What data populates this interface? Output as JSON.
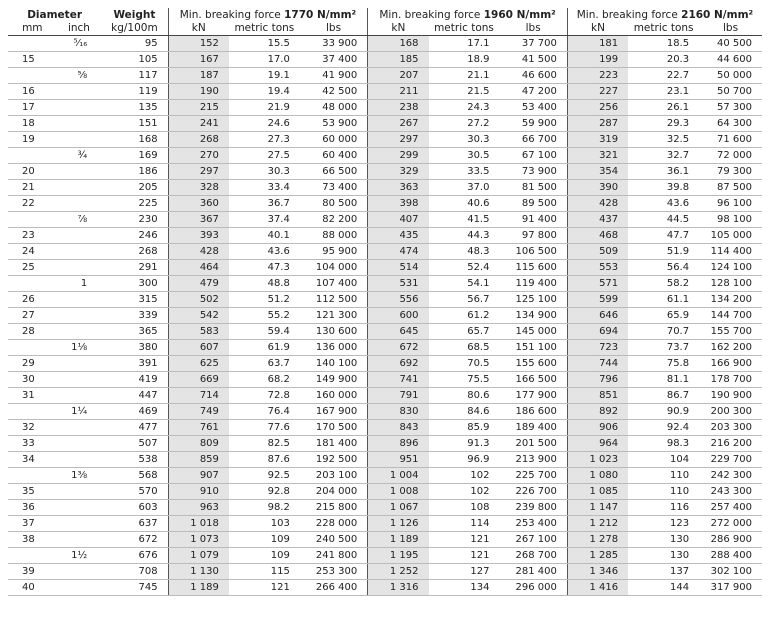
{
  "header": {
    "diameter": "Diameter",
    "weight": "Weight",
    "groups": [
      {
        "prefix": "Min. breaking force",
        "grade": "1770 N/mm²"
      },
      {
        "prefix": "Min. breaking force",
        "grade": "1960 N/mm²"
      },
      {
        "prefix": "Min. breaking force",
        "grade": "2160 N/mm²"
      }
    ],
    "units": [
      "mm",
      "inch",
      "kg/100m",
      "kN",
      "metric tons",
      "lbs",
      "kN",
      "metric tons",
      "lbs",
      "kN",
      "metric tons",
      "lbs"
    ]
  },
  "table": {
    "rows": [
      [
        null,
        "⁵⁄₁₆",
        "95",
        "152",
        "15.5",
        "33 900",
        "168",
        "17.1",
        "37 700",
        "181",
        "18.5",
        "40 500"
      ],
      [
        "15",
        null,
        "105",
        "167",
        "17.0",
        "37 400",
        "185",
        "18.9",
        "41 500",
        "199",
        "20.3",
        "44 600"
      ],
      [
        null,
        "⅝",
        "117",
        "187",
        "19.1",
        "41 900",
        "207",
        "21.1",
        "46 600",
        "223",
        "22.7",
        "50 000"
      ],
      [
        "16",
        null,
        "119",
        "190",
        "19.4",
        "42 500",
        "211",
        "21.5",
        "47 200",
        "227",
        "23.1",
        "50 700"
      ],
      [
        "17",
        null,
        "135",
        "215",
        "21.9",
        "48 000",
        "238",
        "24.3",
        "53 400",
        "256",
        "26.1",
        "57 300"
      ],
      [
        "18",
        null,
        "151",
        "241",
        "24.6",
        "53 900",
        "267",
        "27.2",
        "59 900",
        "287",
        "29.3",
        "64 300"
      ],
      [
        "19",
        null,
        "168",
        "268",
        "27.3",
        "60 000",
        "297",
        "30.3",
        "66 700",
        "319",
        "32.5",
        "71 600"
      ],
      [
        null,
        "¾",
        "169",
        "270",
        "27.5",
        "60 400",
        "299",
        "30.5",
        "67 100",
        "321",
        "32.7",
        "72 000"
      ],
      [
        "20",
        null,
        "186",
        "297",
        "30.3",
        "66 500",
        "329",
        "33.5",
        "73 900",
        "354",
        "36.1",
        "79 300"
      ],
      [
        "21",
        null,
        "205",
        "328",
        "33.4",
        "73 400",
        "363",
        "37.0",
        "81 500",
        "390",
        "39.8",
        "87 500"
      ],
      [
        "22",
        null,
        "225",
        "360",
        "36.7",
        "80 500",
        "398",
        "40.6",
        "89 500",
        "428",
        "43.6",
        "96 100"
      ],
      [
        null,
        "⅞",
        "230",
        "367",
        "37.4",
        "82 200",
        "407",
        "41.5",
        "91 400",
        "437",
        "44.5",
        "98 100"
      ],
      [
        "23",
        null,
        "246",
        "393",
        "40.1",
        "88 000",
        "435",
        "44.3",
        "97 800",
        "468",
        "47.7",
        "105 000"
      ],
      [
        "24",
        null,
        "268",
        "428",
        "43.6",
        "95 900",
        "474",
        "48.3",
        "106 500",
        "509",
        "51.9",
        "114 400"
      ],
      [
        "25",
        null,
        "291",
        "464",
        "47.3",
        "104 000",
        "514",
        "52.4",
        "115 600",
        "553",
        "56.4",
        "124 100"
      ],
      [
        null,
        "1",
        "300",
        "479",
        "48.8",
        "107 400",
        "531",
        "54.1",
        "119 400",
        "571",
        "58.2",
        "128 100"
      ],
      [
        "26",
        null,
        "315",
        "502",
        "51.2",
        "112 500",
        "556",
        "56.7",
        "125 100",
        "599",
        "61.1",
        "134 200"
      ],
      [
        "27",
        null,
        "339",
        "542",
        "55.2",
        "121 300",
        "600",
        "61.2",
        "134 900",
        "646",
        "65.9",
        "144 700"
      ],
      [
        "28",
        null,
        "365",
        "583",
        "59.4",
        "130 600",
        "645",
        "65.7",
        "145 000",
        "694",
        "70.7",
        "155 700"
      ],
      [
        null,
        "1⅛",
        "380",
        "607",
        "61.9",
        "136 000",
        "672",
        "68.5",
        "151 100",
        "723",
        "73.7",
        "162 200"
      ],
      [
        "29",
        null,
        "391",
        "625",
        "63.7",
        "140 100",
        "692",
        "70.5",
        "155 600",
        "744",
        "75.8",
        "166 900"
      ],
      [
        "30",
        null,
        "419",
        "669",
        "68.2",
        "149 900",
        "741",
        "75.5",
        "166 500",
        "796",
        "81.1",
        "178 700"
      ],
      [
        "31",
        null,
        "447",
        "714",
        "72.8",
        "160 000",
        "791",
        "80.6",
        "177 900",
        "851",
        "86.7",
        "190 900"
      ],
      [
        null,
        "1¼",
        "469",
        "749",
        "76.4",
        "167 900",
        "830",
        "84.6",
        "186 600",
        "892",
        "90.9",
        "200 300"
      ],
      [
        "32",
        null,
        "477",
        "761",
        "77.6",
        "170 500",
        "843",
        "85.9",
        "189 400",
        "906",
        "92.4",
        "203 300"
      ],
      [
        "33",
        null,
        "507",
        "809",
        "82.5",
        "181 400",
        "896",
        "91.3",
        "201 500",
        "964",
        "98.3",
        "216 200"
      ],
      [
        "34",
        null,
        "538",
        "859",
        "87.6",
        "192 500",
        "951",
        "96.9",
        "213 900",
        "1 023",
        "104",
        "229 700"
      ],
      [
        null,
        "1⅜",
        "568",
        "907",
        "92.5",
        "203 100",
        "1 004",
        "102",
        "225 700",
        "1 080",
        "110",
        "242 300"
      ],
      [
        "35",
        null,
        "570",
        "910",
        "92.8",
        "204 000",
        "1 008",
        "102",
        "226 700",
        "1 085",
        "110",
        "243 300"
      ],
      [
        "36",
        null,
        "603",
        "963",
        "98.2",
        "215 800",
        "1 067",
        "108",
        "239 800",
        "1 147",
        "116",
        "257 400"
      ],
      [
        "37",
        null,
        "637",
        "1 018",
        "103",
        "228 000",
        "1 126",
        "114",
        "253 400",
        "1 212",
        "123",
        "272 000"
      ],
      [
        "38",
        null,
        "672",
        "1 073",
        "109",
        "240 500",
        "1 189",
        "121",
        "267 100",
        "1 278",
        "130",
        "286 900"
      ],
      [
        null,
        "1½",
        "676",
        "1 079",
        "109",
        "241 800",
        "1 195",
        "121",
        "268 700",
        "1 285",
        "130",
        "288 400"
      ],
      [
        "39",
        null,
        "708",
        "1 130",
        "115",
        "253 300",
        "1 252",
        "127",
        "281 400",
        "1 346",
        "137",
        "302 100"
      ],
      [
        "40",
        null,
        "745",
        "1 189",
        "121",
        "266 400",
        "1 316",
        "134",
        "296 000",
        "1 416",
        "144",
        "317 900"
      ]
    ]
  }
}
